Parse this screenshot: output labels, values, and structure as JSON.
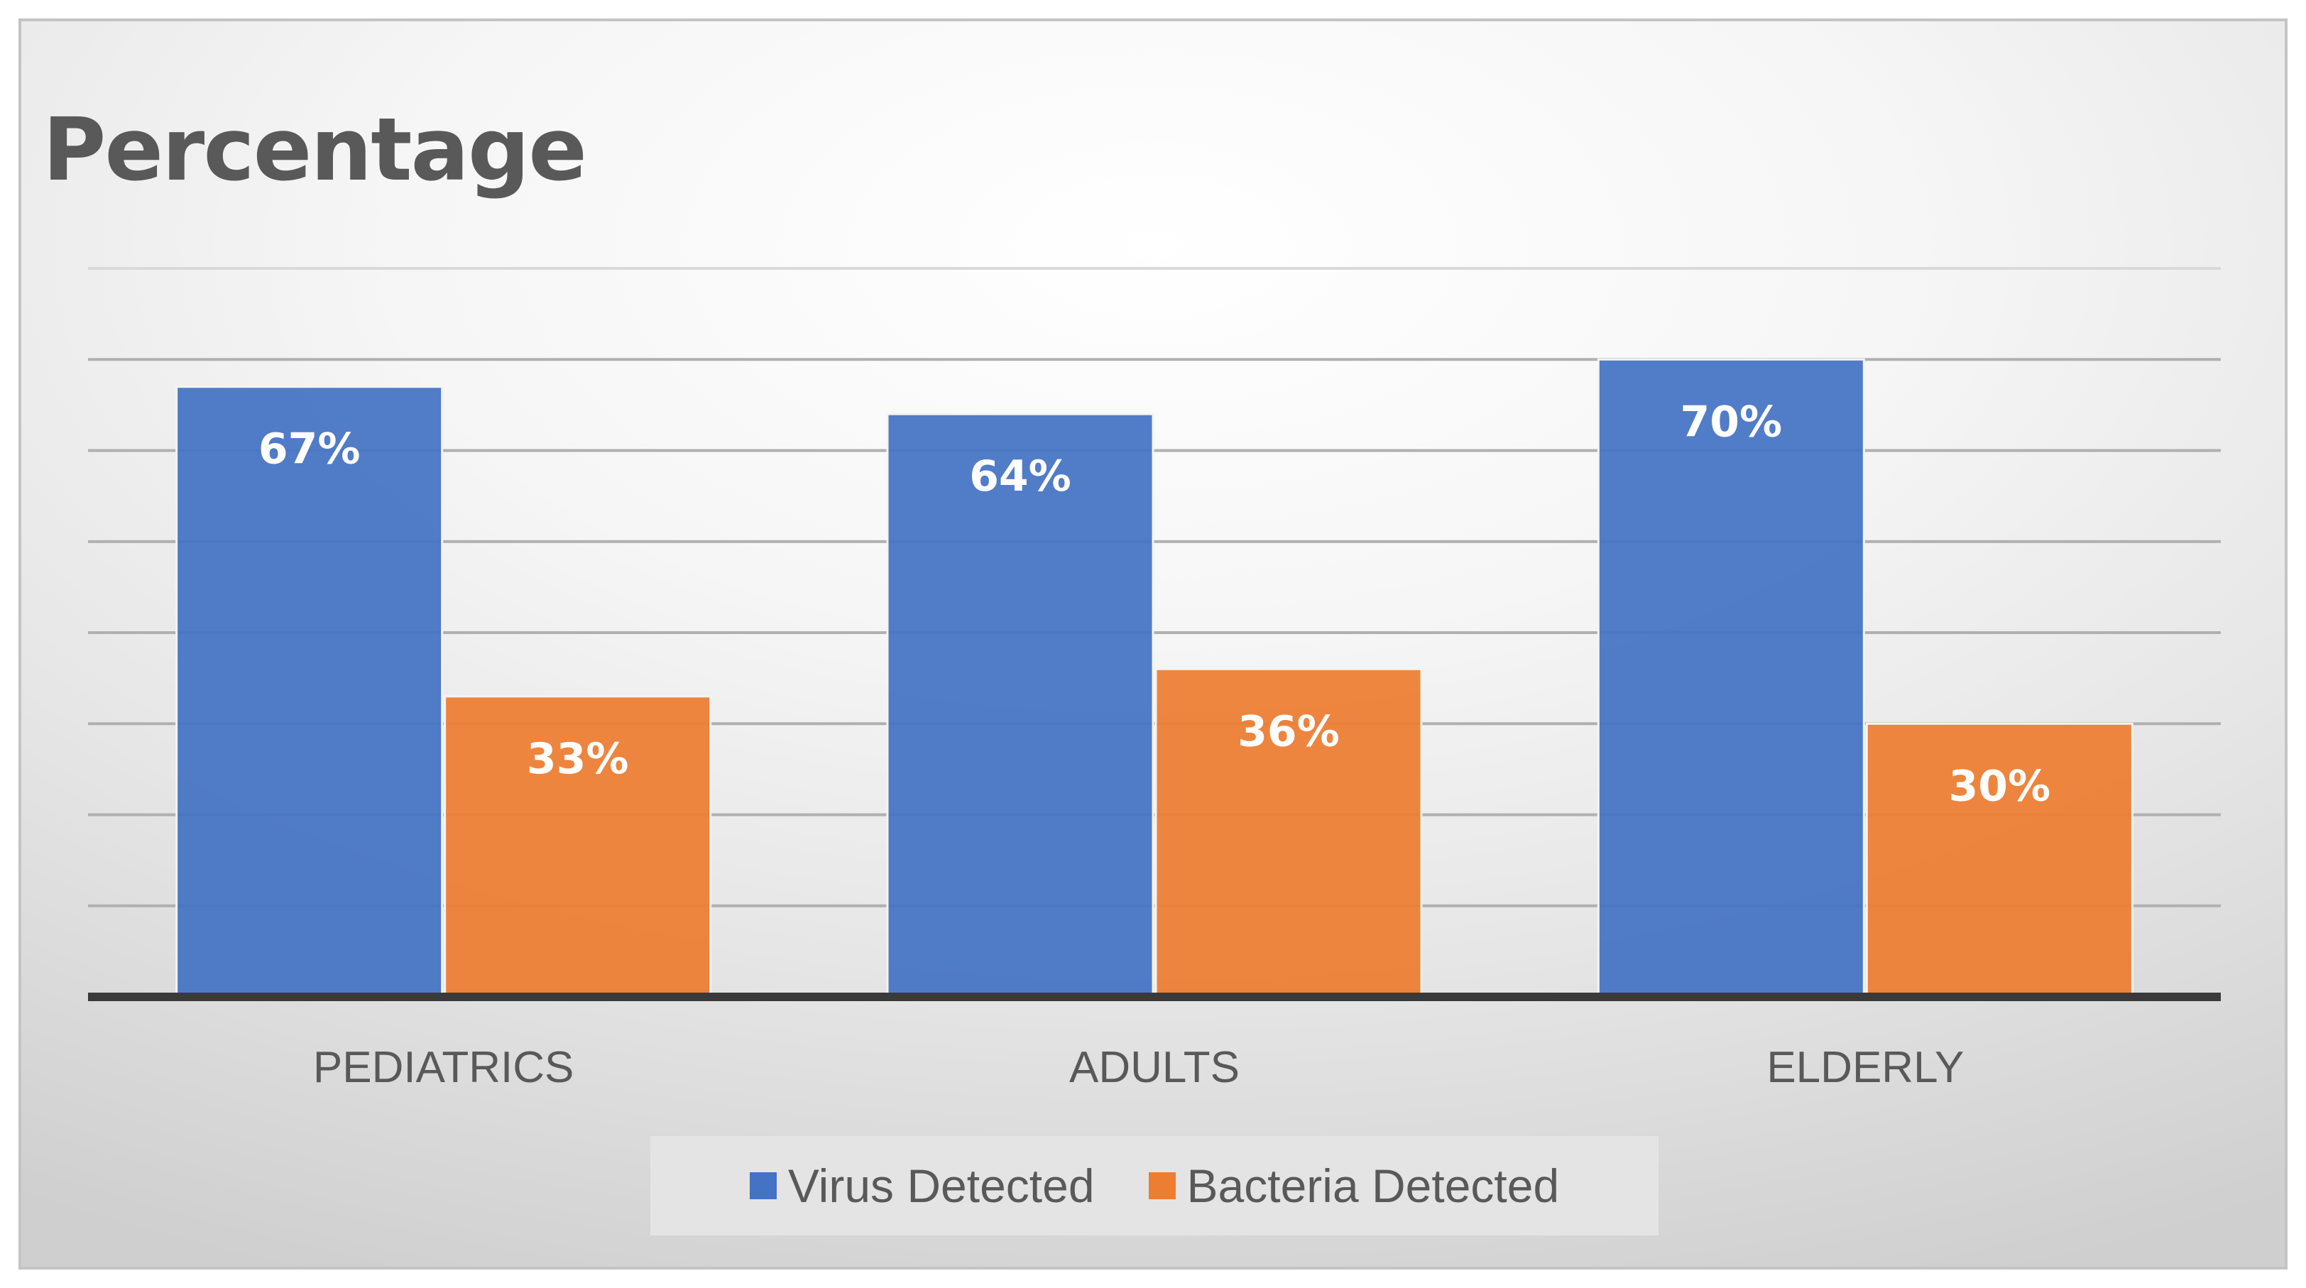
{
  "chart_data": {
    "type": "bar",
    "title": "Percentage",
    "categories": [
      "PEDIATRICS",
      "ADULTS",
      "ELDERLY"
    ],
    "series": [
      {
        "name": "Virus Detected",
        "values": [
          67,
          64,
          70
        ],
        "labels": [
          "67%",
          "64%",
          "70%"
        ],
        "color": "#4472C4"
      },
      {
        "name": "Bacteria Detected",
        "values": [
          33,
          36,
          30
        ],
        "labels": [
          "33%",
          "36%",
          "30%"
        ],
        "color": "#ED7D31"
      }
    ],
    "ylim": [
      0,
      80
    ],
    "gridlines": true,
    "legend": "bottom",
    "xlabel": "",
    "ylabel": ""
  }
}
